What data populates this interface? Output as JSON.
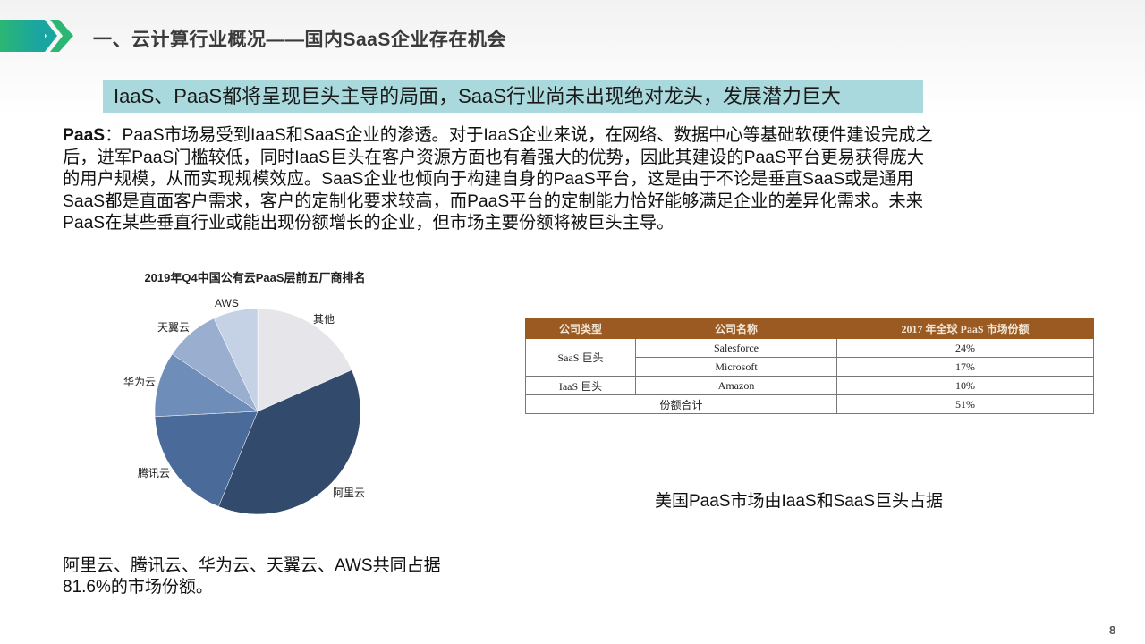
{
  "header": {
    "title": "一、云计算行业概况——国内SaaS企业存在机会",
    "icon": "double-chevron-arrow-icon",
    "accent_colors": [
      "#1aa99a",
      "#2bb673"
    ]
  },
  "banner": {
    "text": "IaaS、PaaS都将呈现巨头主导的局面，SaaS行业尚未出现绝对龙头，发展潜力巨大",
    "color": "#a9d9dc"
  },
  "paragraph": {
    "lead": "PaaS",
    "lines": [
      "：PaaS市场易受到IaaS和SaaS企业的渗透。对于IaaS企业来说，在网络、数据中心等基础软硬件建设完成之",
      "后，进军PaaS门槛较低，同时IaaS巨头在客户资源方面也有着强大的优势，因此其建设的PaaS平台更易获得庞大",
      "的用户规模，从而实现规模效应。SaaS企业也倾向于构建自身的PaaS平台，这是由于不论是垂直SaaS或是通用",
      "SaaS都是直面客户需求，客户的定制化要求较高，而PaaS平台的定制能力恰好能够满足企业的差异化需求。未来",
      "PaaS在某些垂直行业或能出现份额增长的企业，但市场主要份额将被巨头主导。"
    ]
  },
  "chart_data": {
    "type": "pie",
    "title": "2019年Q4中国公有云PaaS层前五厂商排名",
    "slices": [
      {
        "label": "其他",
        "value": 18.4,
        "color": "#e6e6ea"
      },
      {
        "label": "阿里云",
        "value": 37.8,
        "color": "#324a6c"
      },
      {
        "label": "腾讯云",
        "value": 18.0,
        "color": "#4a6a9a"
      },
      {
        "label": "华为云",
        "value": 10.2,
        "color": "#6f8db9"
      },
      {
        "label": "天翼云",
        "value": 8.6,
        "color": "#9aaed0"
      },
      {
        "label": "AWS",
        "value": 7.0,
        "color": "#c5d1e5"
      }
    ]
  },
  "table": {
    "headers": [
      "公司类型",
      "公司名称",
      "2017 年全球 PaaS 市场份额"
    ],
    "groups": [
      {
        "type": "SaaS 巨头",
        "rows": [
          [
            "Salesforce",
            "24%"
          ],
          [
            "Microsoft",
            "17%"
          ]
        ]
      },
      {
        "type": "IaaS 巨头",
        "rows": [
          [
            "Amazon",
            "10%"
          ]
        ]
      }
    ],
    "total_label": "份额合计",
    "total_value": "51%",
    "header_color": "#9a5a22"
  },
  "caption": "美国PaaS市场由IaaS和SaaS巨头占据",
  "footer": {
    "lines": [
      "阿里云、腾讯云、华为云、天翼云、AWS共同占据",
      "81.6%的市场份额。"
    ]
  },
  "page_number": "8"
}
